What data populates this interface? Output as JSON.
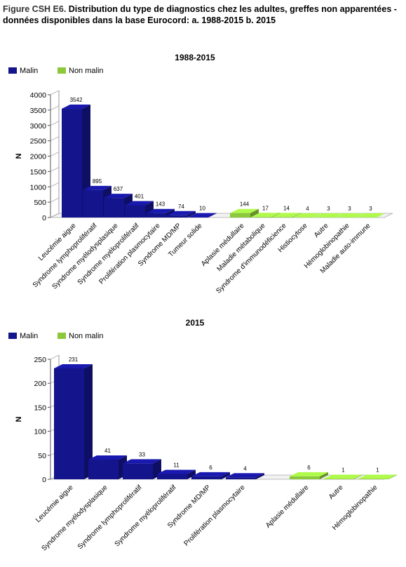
{
  "figure": {
    "label": "Figure CSH E6.",
    "title": "Distribution du type de diagnostics chez les adultes, greffes non apparentées - données disponibles dans la base Eurocord: a. 1988-2015  b. 2015"
  },
  "colors": {
    "malin": "#14148c",
    "non_malin": "#8cc83c"
  },
  "chart_data": [
    {
      "type": "bar",
      "title": "1988-2015",
      "ylabel": "N",
      "ylim": [
        0,
        4000
      ],
      "yticks": [
        0,
        500,
        1000,
        1500,
        2000,
        2500,
        3000,
        3500,
        4000
      ],
      "legend": [
        "Malin",
        "Non malin"
      ],
      "legend_position": "top-left",
      "series": [
        {
          "name": "Malin",
          "categories": [
            "Leucémie aigue",
            "Syndrome lymphoprolifératif",
            "Syndrome myélodysplasique",
            "Syndrome myéloprolifératif",
            "Prolifération plasmocytaire",
            "Syndrome MD/MP",
            "Tumeur solide"
          ],
          "values": [
            3542,
            895,
            637,
            401,
            143,
            74,
            10
          ]
        },
        {
          "name": "Non malin",
          "categories": [
            "Aplasie médullaire",
            "Maladie métabolique",
            "Syndrome d'immunodéficience",
            "Histiocytose",
            "Autre",
            "Hémoglobinopathie",
            "Maladie auto-immune"
          ],
          "values": [
            144,
            17,
            14,
            4,
            3,
            3,
            3
          ]
        }
      ]
    },
    {
      "type": "bar",
      "title": "2015",
      "ylabel": "N",
      "ylim": [
        0,
        250
      ],
      "yticks": [
        0,
        50,
        100,
        150,
        200,
        250
      ],
      "legend": [
        "Malin",
        "Non malin"
      ],
      "legend_position": "top-left",
      "series": [
        {
          "name": "Malin",
          "categories": [
            "Leucémie aigue",
            "Syndrome myélodysplasique",
            "Syndrome lymphoprolifératif",
            "Syndrome myéloprolifératif",
            "Syndrome MD/MP",
            "Prolifération plasmocytaire"
          ],
          "values": [
            231,
            41,
            33,
            11,
            6,
            4
          ]
        },
        {
          "name": "Non malin",
          "categories": [
            "Aplasie médullaire",
            "Autre",
            "Hémoglobinopathie"
          ],
          "values": [
            6,
            1,
            1
          ]
        }
      ]
    }
  ]
}
